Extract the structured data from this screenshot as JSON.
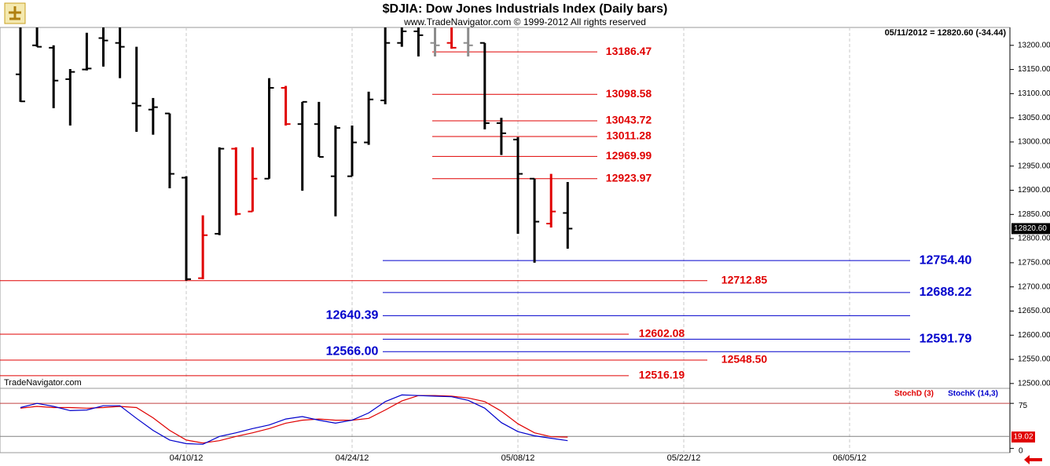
{
  "header": {
    "title": "$DJIA:  Dow Jones Industrials Index  (Daily bars)",
    "subtitle": "www.TradeNavigator.com © 1999-2012 All rights reserved",
    "info": "05/11/2012 = 12820.60 (-34.44)",
    "watermark": "TradeNavigator.com"
  },
  "chart_data": [
    {
      "type": "ohlc",
      "categories": [
        null,
        null,
        null,
        null,
        null,
        null,
        null,
        null,
        null,
        null,
        "04/10/12",
        null,
        null,
        null,
        null,
        null,
        null,
        null,
        null,
        null,
        "04/24/12",
        null,
        null,
        null,
        null,
        null,
        null,
        null,
        null,
        null,
        "05/08/12",
        null,
        null,
        null,
        null,
        null,
        null,
        null,
        null,
        null,
        "05/22/12",
        null,
        null,
        null,
        null,
        null,
        null,
        null,
        null,
        null,
        "06/05/12",
        null,
        null,
        null,
        null,
        null,
        null,
        null,
        null
      ],
      "open": [
        13140,
        13200,
        13195,
        13130,
        13150,
        13215,
        13205,
        13080,
        13067,
        13059,
        12926,
        12718,
        12810,
        12986,
        12856,
        12924,
        13112,
        13037,
        13037,
        12929,
        12929,
        12999,
        13086,
        13205,
        13229,
        13205,
        13205,
        13205,
        13205,
        13039,
        13005,
        12924,
        12831,
        12853,
        null,
        null,
        null,
        null,
        null,
        null,
        null,
        null,
        null,
        null,
        null,
        null,
        null,
        null,
        null,
        null,
        null,
        null,
        null,
        null,
        null,
        null,
        null,
        null,
        null
      ],
      "high": [
        13237,
        13237,
        13200,
        13151,
        13226,
        13237,
        13237,
        13197,
        13091,
        13059,
        12929,
        12848,
        12989,
        12989,
        12989,
        13132,
        13116,
        13083,
        13083,
        13034,
        13034,
        13104,
        13237,
        13237,
        13237,
        13237,
        13237,
        13237,
        13205,
        13050,
        13010,
        12924,
        12934,
        12917,
        null,
        null,
        null,
        null,
        null,
        null,
        null,
        null,
        null,
        null,
        null,
        null,
        null,
        null,
        null,
        null,
        null,
        null,
        null,
        null,
        null,
        null,
        null,
        null,
        null
      ],
      "low": [
        13083,
        13197,
        13070,
        13034,
        13148,
        13156,
        13132,
        13021,
        13015,
        12904,
        12713,
        12716,
        12807,
        12848,
        12856,
        12924,
        13034,
        12899,
        12969,
        12846,
        12929,
        12994,
        13078,
        13197,
        13177,
        13177,
        13193,
        13177,
        13026,
        12973,
        12810,
        12750,
        12823,
        12779,
        null,
        null,
        null,
        null,
        null,
        null,
        null,
        null,
        null,
        null,
        null,
        null,
        null,
        null,
        null,
        null,
        null,
        null,
        null,
        null,
        null,
        null,
        null,
        null,
        null
      ],
      "close": [
        13084,
        13197,
        13127,
        13145,
        13152,
        13210,
        13197,
        13075,
        13072,
        12934,
        12716,
        12807,
        12986,
        12851,
        12924,
        13112,
        13037,
        13083,
        12969,
        13029,
        12999,
        13088,
        13205,
        13229,
        13221,
        13200,
        13195,
        13200,
        13039,
        13018,
        12934,
        12835,
        12856,
        12820.6,
        null,
        null,
        null,
        null,
        null,
        null,
        null,
        null,
        null,
        null,
        null,
        null,
        null,
        null,
        null,
        null,
        null,
        null,
        null,
        null,
        null,
        null,
        null,
        null,
        null
      ],
      "colors": [
        "#000000",
        "#000000",
        "#000000",
        "#000000",
        "#000000",
        "#000000",
        "#000000",
        "#000000",
        "#000000",
        "#000000",
        "#000000",
        "#e00000",
        "#000000",
        "#e00000",
        "#e00000",
        "#000000",
        "#e00000",
        "#000000",
        "#000000",
        "#000000",
        "#000000",
        "#000000",
        "#000000",
        "#000000",
        "#000000",
        "#8c8c8c",
        "#e00000",
        "#8c8c8c",
        "#000000",
        "#000000",
        "#000000",
        "#000000",
        "#e00000",
        "#000000",
        null,
        null,
        null,
        null,
        null,
        null,
        null,
        null,
        null,
        null,
        null,
        null,
        null,
        null,
        null,
        null,
        null,
        null,
        null,
        null,
        null,
        null,
        null,
        null,
        null
      ],
      "last": {
        "value": 12820.6,
        "label": "12820.60"
      },
      "ylim": [
        12490,
        13237
      ],
      "yticks": [
        {
          "value": 12500,
          "label": "12500.00"
        },
        {
          "value": 12550,
          "label": "12550.00"
        },
        {
          "value": 12600,
          "label": "12600.00"
        },
        {
          "value": 12650,
          "label": "12650.00"
        },
        {
          "value": 12700,
          "label": "12700.00"
        },
        {
          "value": 12750,
          "label": "12750.00"
        },
        {
          "value": 12800,
          "label": "12800.00"
        },
        {
          "value": 12850,
          "label": "12850.00"
        },
        {
          "value": 12900,
          "label": "12900.00"
        },
        {
          "value": 12950,
          "label": "12950.00"
        },
        {
          "value": 13000,
          "label": "13000.00"
        },
        {
          "value": 13050,
          "label": "13050.00"
        },
        {
          "value": 13100,
          "label": "13100.00"
        },
        {
          "value": 13150,
          "label": "13150.00"
        },
        {
          "value": 13200,
          "label": "13200.00"
        }
      ],
      "levels": [
        {
          "value": 13186.47,
          "label": "13186.47",
          "color": "#e00000"
        },
        {
          "value": 13098.58,
          "label": "13098.58",
          "color": "#e00000"
        },
        {
          "value": 13043.72,
          "label": "13043.72",
          "color": "#e00000"
        },
        {
          "value": 13011.28,
          "label": "13011.28",
          "color": "#e00000"
        },
        {
          "value": 12969.99,
          "label": "12969.99",
          "color": "#e00000"
        },
        {
          "value": 12923.97,
          "label": "12923.97",
          "color": "#e00000"
        },
        {
          "value": 12754.4,
          "label": "12754.40",
          "color": "#0000cc"
        },
        {
          "value": 12712.85,
          "label": "12712.85",
          "color": "#e00000"
        },
        {
          "value": 12688.22,
          "label": "12688.22",
          "color": "#0000cc"
        },
        {
          "value": 12640.39,
          "label": "12640.39",
          "color": "#0000cc"
        },
        {
          "value": 12602.08,
          "label": "12602.08",
          "color": "#e00000"
        },
        {
          "value": 12591.79,
          "label": "12591.79",
          "color": "#0000cc"
        },
        {
          "value": 12566,
          "label": "12566.00",
          "color": "#0000cc"
        },
        {
          "value": 12548.5,
          "label": "12548.50",
          "color": "#e00000"
        },
        {
          "value": 12516.19,
          "label": "12516.19",
          "color": "#e00000"
        }
      ]
    },
    {
      "type": "line",
      "series": [
        {
          "name": "StochD (3)",
          "color": "#e00000",
          "values": [
            67,
            70,
            68,
            68,
            67,
            68,
            70,
            68,
            51,
            30,
            14,
            9,
            13,
            20,
            26,
            33,
            42,
            47,
            49,
            47,
            47,
            50,
            64,
            79,
            88,
            88,
            87,
            84,
            78,
            62,
            41,
            26,
            19.5,
            19.02,
            null,
            null,
            null,
            null,
            null,
            null,
            null,
            null,
            null,
            null,
            null,
            null,
            null,
            null,
            null,
            null,
            null,
            null,
            null,
            null,
            null,
            null,
            null,
            null,
            null
          ]
        },
        {
          "name": "StochK (14,3)",
          "color": "#0000cc",
          "values": [
            68,
            75,
            70,
            63,
            64,
            71,
            71,
            50,
            30,
            14,
            8,
            7,
            20,
            26,
            33,
            39,
            49,
            53,
            47,
            42,
            47,
            59,
            78,
            89,
            88,
            87,
            86,
            80,
            67,
            43,
            28,
            21,
            17,
            13,
            null,
            null,
            null,
            null,
            null,
            null,
            null,
            null,
            null,
            null,
            null,
            null,
            null,
            null,
            null,
            null,
            null,
            null,
            null,
            null,
            null,
            null,
            null,
            null,
            null
          ]
        }
      ],
      "reference_lines": [
        {
          "value": 75,
          "color": "#c04040"
        },
        {
          "value": 20,
          "color": "#808080"
        }
      ],
      "ylim": [
        -7,
        100
      ],
      "yticks": [
        0,
        75
      ]
    }
  ]
}
